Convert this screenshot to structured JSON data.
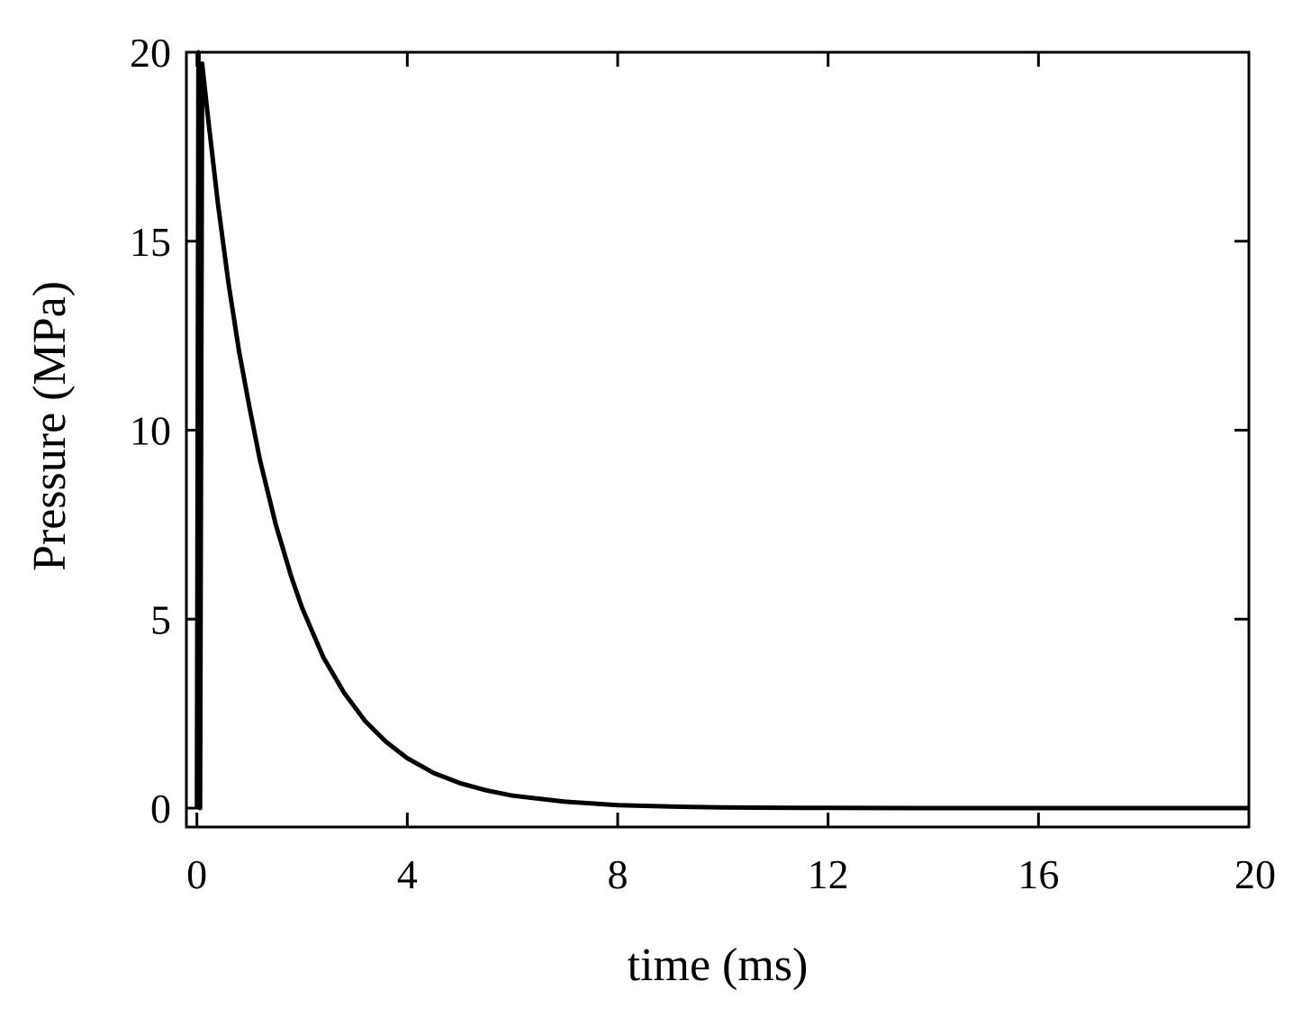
{
  "chart_data": {
    "type": "line",
    "title": "",
    "xlabel": "time (ms)",
    "ylabel": "Pressure (MPa)",
    "xlim": [
      -0.2,
      20
    ],
    "ylim": [
      -0.5,
      20
    ],
    "xticks": [
      0,
      4,
      8,
      12,
      16,
      20
    ],
    "yticks": [
      0,
      5,
      10,
      15,
      20
    ],
    "xtick_labels": [
      "0",
      "4",
      "8",
      "12",
      "16",
      "20"
    ],
    "ytick_labels": [
      "0",
      "5",
      "10",
      "15",
      "20"
    ],
    "grid": false,
    "legend": "none",
    "line_color": "#000000",
    "series": [
      {
        "x": [
          0,
          0.03,
          0.06,
          0.1,
          0.2,
          0.4,
          0.6,
          0.8,
          1.0,
          1.2,
          1.5,
          1.8,
          2.0,
          2.4,
          2.8,
          3.2,
          3.6,
          4.0,
          4.5,
          5.0,
          5.5,
          6.0,
          7.0,
          8.0,
          9.0,
          10.0,
          11.0,
          12.0,
          14.0,
          16.0,
          18.0,
          20.0
        ],
        "y": [
          0,
          20.0,
          0,
          19.7,
          18.4,
          16.0,
          13.9,
          12.1,
          10.6,
          9.2,
          7.5,
          6.1,
          5.3,
          4.0,
          3.05,
          2.3,
          1.75,
          1.32,
          0.93,
          0.66,
          0.47,
          0.33,
          0.17,
          0.08,
          0.04,
          0.02,
          0.01,
          0.005,
          0.001,
          0,
          0,
          0
        ]
      }
    ]
  }
}
